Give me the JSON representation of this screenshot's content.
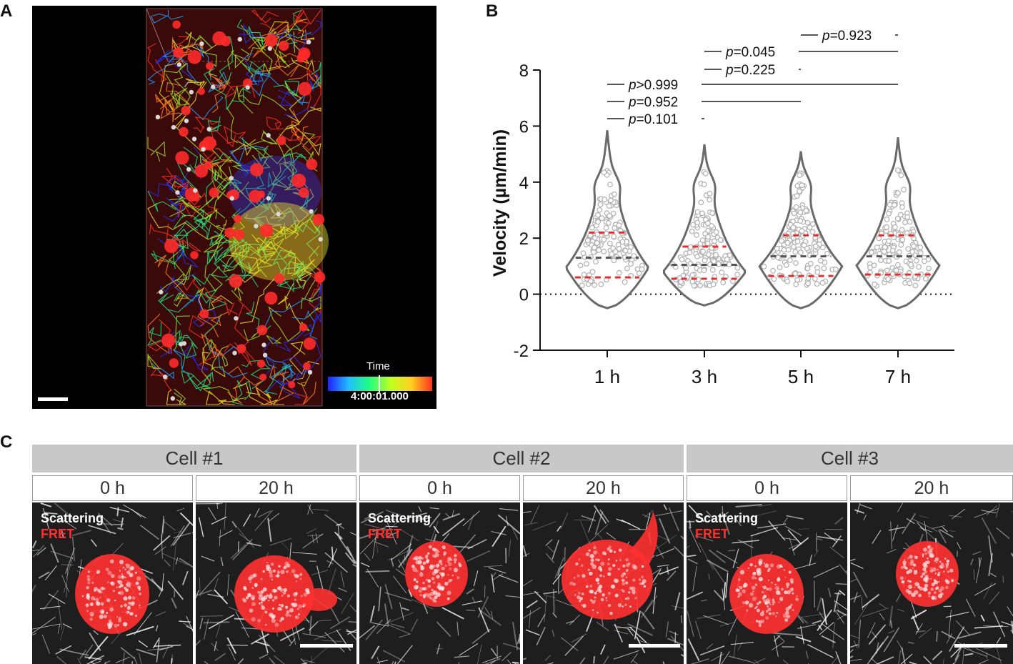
{
  "panels": {
    "a": {
      "letter": "A",
      "colorbar_title": "Time",
      "colorbar_value": "4:00:01.000",
      "colors": {
        "background": "#000000",
        "volume": "#3a0a0a",
        "cells": "#ff2a2a",
        "beads": "#d8d8d8"
      }
    },
    "b": {
      "letter": "B"
    },
    "c": {
      "letter": "C",
      "cells": [
        {
          "title": "Cell #1",
          "times": [
            "0 h",
            "20 h"
          ]
        },
        {
          "title": "Cell #2",
          "times": [
            "0 h",
            "20 h"
          ]
        },
        {
          "title": "Cell #3",
          "times": [
            "0 h",
            "20 h"
          ]
        }
      ],
      "channel_scattering": "Scattering",
      "channel_fret": "FRET",
      "colors": {
        "scattering": "#ffffff",
        "fret": "#ff3030",
        "header_bg": "#c8c8c8"
      }
    }
  },
  "chart_data": {
    "type": "violin",
    "ylabel": "Velocity (µm/min)",
    "xlabel": "",
    "ylim": [
      -2,
      8
    ],
    "yticks": [
      -2,
      0,
      2,
      4,
      6,
      8
    ],
    "categories": [
      "1 h",
      "3 h",
      "5 h",
      "7 h"
    ],
    "reference_line": 0,
    "median": [
      1.3,
      1.05,
      1.35,
      1.35
    ],
    "quartile_low": [
      0.6,
      0.55,
      0.65,
      0.7
    ],
    "quartile_high": [
      2.2,
      1.7,
      2.1,
      2.1
    ],
    "min": [
      -0.5,
      -0.4,
      -0.5,
      -0.5
    ],
    "max": [
      5.85,
      5.35,
      5.1,
      5.6
    ],
    "comparisons": [
      {
        "from": "5 h",
        "to": "7 h",
        "label_prefix": "p",
        "label_value": "=0.923"
      },
      {
        "from": "3 h",
        "to": "7 h",
        "label_prefix": "p",
        "label_value": "=0.045"
      },
      {
        "from": "3 h",
        "to": "5 h",
        "label_prefix": "p",
        "label_value": "=0.225"
      },
      {
        "from": "1 h",
        "to": "7 h",
        "label_prefix": "p",
        "label_value": ">0.999"
      },
      {
        "from": "1 h",
        "to": "5 h",
        "label_prefix": "p",
        "label_value": "=0.952"
      },
      {
        "from": "1 h",
        "to": "3 h",
        "label_prefix": "p",
        "label_value": "=0.101"
      }
    ],
    "colors": {
      "violin": "#6a6a6a",
      "points": "#b0b0b0",
      "median": "#555555",
      "quartiles": "#e03030"
    }
  }
}
